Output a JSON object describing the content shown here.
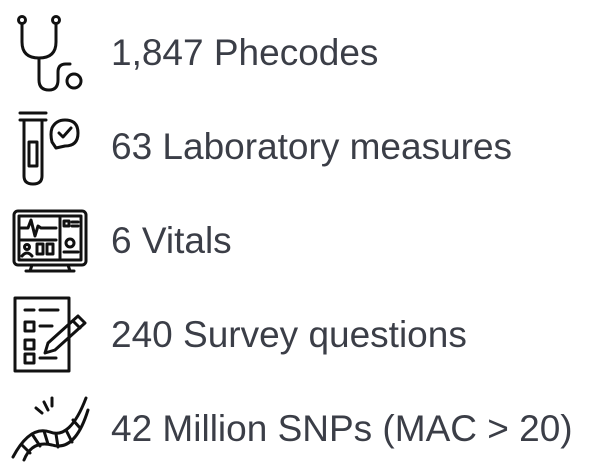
{
  "items": [
    {
      "label": "1,847 Phecodes"
    },
    {
      "label": "63 Laboratory measures"
    },
    {
      "label": "6 Vitals"
    },
    {
      "label": "240 Survey questions"
    },
    {
      "label": "42 Million SNPs (MAC > 20)"
    }
  ]
}
